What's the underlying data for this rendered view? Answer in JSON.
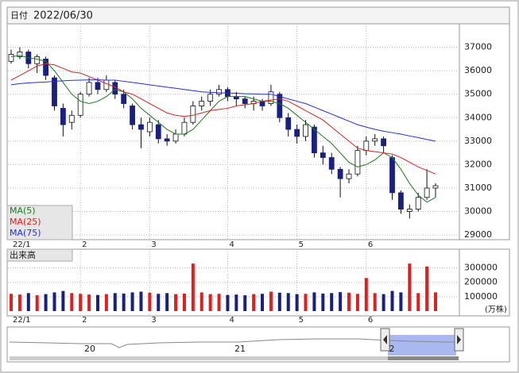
{
  "chart_data": {
    "type": "candlestick",
    "date_label": "日付",
    "date": "2022/06/30",
    "categories": [
      "22/1",
      null,
      null,
      null,
      null,
      null,
      null,
      null,
      "2",
      null,
      null,
      null,
      null,
      null,
      null,
      null,
      "3",
      null,
      null,
      null,
      null,
      null,
      null,
      null,
      null,
      "4",
      null,
      null,
      null,
      null,
      null,
      null,
      null,
      "5",
      null,
      null,
      null,
      null,
      null,
      null,
      null,
      "6",
      null,
      null,
      null,
      null,
      null,
      null,
      null,
      null
    ],
    "open": [
      36400,
      36600,
      36800,
      36300,
      36500,
      35700,
      34400,
      33800,
      34100,
      35000,
      35500,
      35200,
      35500,
      35000,
      34500,
      33700,
      33400,
      33700,
      33100,
      33000,
      33300,
      33800,
      34500,
      34700,
      35000,
      35200,
      34900,
      34800,
      34600,
      34700,
      34600,
      35000,
      34000,
      33500,
      33200,
      33600,
      32500,
      32300,
      31800,
      31400,
      31600,
      32600,
      33000,
      33100,
      32300,
      30800,
      30000,
      30100,
      30600,
      31000
    ],
    "high": [
      36900,
      37000,
      36900,
      36700,
      36600,
      35800,
      34600,
      34300,
      35100,
      35700,
      35700,
      35800,
      35600,
      35200,
      34600,
      34000,
      34000,
      33900,
      33300,
      33500,
      34000,
      34700,
      34900,
      35200,
      35400,
      35300,
      35100,
      34900,
      34900,
      34800,
      35400,
      35100,
      34200,
      33700,
      33900,
      33700,
      32800,
      32500,
      31900,
      31800,
      32800,
      33200,
      33300,
      33200,
      32400,
      30900,
      30300,
      30800,
      31800,
      31200
    ],
    "low": [
      36300,
      36500,
      36100,
      35900,
      35600,
      34300,
      33200,
      33500,
      34000,
      34900,
      35000,
      35100,
      34800,
      34400,
      33500,
      32700,
      33200,
      32900,
      32800,
      32900,
      33200,
      33700,
      34300,
      34500,
      34900,
      34700,
      34500,
      34400,
      34300,
      34300,
      34500,
      33800,
      33200,
      32900,
      33000,
      32300,
      32000,
      31600,
      30600,
      31200,
      31500,
      32400,
      32800,
      32500,
      30500,
      29900,
      29700,
      30000,
      30500,
      30600
    ],
    "close": [
      36700,
      36800,
      36300,
      36600,
      35800,
      34500,
      33700,
      34100,
      35000,
      35500,
      35200,
      35600,
      35000,
      34600,
      33700,
      33500,
      33800,
      33100,
      33000,
      33300,
      33800,
      34500,
      34700,
      35000,
      35200,
      34900,
      34800,
      34600,
      34700,
      34500,
      35100,
      34000,
      33500,
      33200,
      33700,
      32500,
      32300,
      31800,
      31400,
      31600,
      32600,
      33000,
      33100,
      32800,
      30800,
      30100,
      30100,
      30600,
      31000,
      31100
    ],
    "up_color": "#ffffff",
    "down_color": "#1a2080",
    "ylim": [
      28800,
      38000
    ],
    "yticks": [
      29000,
      30000,
      31000,
      32000,
      33000,
      34000,
      35000,
      36000,
      37000
    ],
    "grid": true,
    "ma": [
      {
        "name": "MA(5)",
        "color": "#1e7a1e",
        "values": [
          36600,
          36650,
          36550,
          36500,
          36400,
          36000,
          35500,
          35000,
          34700,
          34600,
          34700,
          34900,
          35200,
          35100,
          34800,
          34400,
          34100,
          33800,
          33500,
          33300,
          33300,
          33500,
          33900,
          34300,
          34700,
          34900,
          34900,
          34900,
          34800,
          34700,
          34700,
          34600,
          34400,
          34100,
          33800,
          33500,
          33200,
          32900,
          32500,
          32100,
          31900,
          32000,
          32200,
          32500,
          32300,
          31800,
          31200,
          30700,
          30400,
          30600
        ]
      },
      {
        "name": "MA(25)",
        "color": "#e02020",
        "values": [
          35600,
          35800,
          36000,
          36200,
          36300,
          36250,
          36100,
          35950,
          35900,
          35750,
          35600,
          35450,
          35300,
          35100,
          35000,
          34800,
          34600,
          34400,
          34200,
          34100,
          34050,
          34100,
          34200,
          34300,
          34350,
          34400,
          34500,
          34550,
          34600,
          34700,
          34750,
          34800,
          34700,
          34500,
          34300,
          34100,
          33900,
          33600,
          33300,
          33000,
          32700,
          32600,
          32550,
          32500,
          32450,
          32300,
          32100,
          31900,
          31750,
          31600
        ]
      },
      {
        "name": "MA(75)",
        "color": "#2030e0",
        "values": [
          35400,
          35450,
          35480,
          35500,
          35520,
          35550,
          35570,
          35590,
          35600,
          35610,
          35610,
          35600,
          35600,
          35550,
          35500,
          35450,
          35400,
          35350,
          35300,
          35250,
          35200,
          35150,
          35100,
          35080,
          35060,
          35050,
          35040,
          35020,
          35010,
          35000,
          35000,
          34900,
          34800,
          34700,
          34600,
          34450,
          34300,
          34150,
          34000,
          33850,
          33700,
          33600,
          33500,
          33420,
          33360,
          33300,
          33220,
          33150,
          33070,
          33000
        ]
      }
    ],
    "volume": {
      "label": "出来高",
      "unit": "(万株)",
      "up_color": "#e02020",
      "down_color": "#1a2080",
      "values": [
        120000,
        115000,
        125000,
        110000,
        118000,
        130000,
        140000,
        125000,
        120000,
        115000,
        112000,
        118000,
        125000,
        122000,
        130000,
        135000,
        128000,
        120000,
        125000,
        118000,
        122000,
        330000,
        130000,
        118000,
        120000,
        112000,
        115000,
        110000,
        118000,
        120000,
        135000,
        128000,
        125000,
        118000,
        120000,
        130000,
        122000,
        125000,
        132000,
        128000,
        120000,
        230000,
        125000,
        118000,
        140000,
        130000,
        330000,
        125000,
        310000,
        130000
      ],
      "ylim": [
        0,
        430000
      ],
      "yticks": [
        100000,
        200000,
        300000
      ]
    },
    "navigator": {
      "labels": [
        "20",
        "21",
        "2"
      ]
    }
  }
}
